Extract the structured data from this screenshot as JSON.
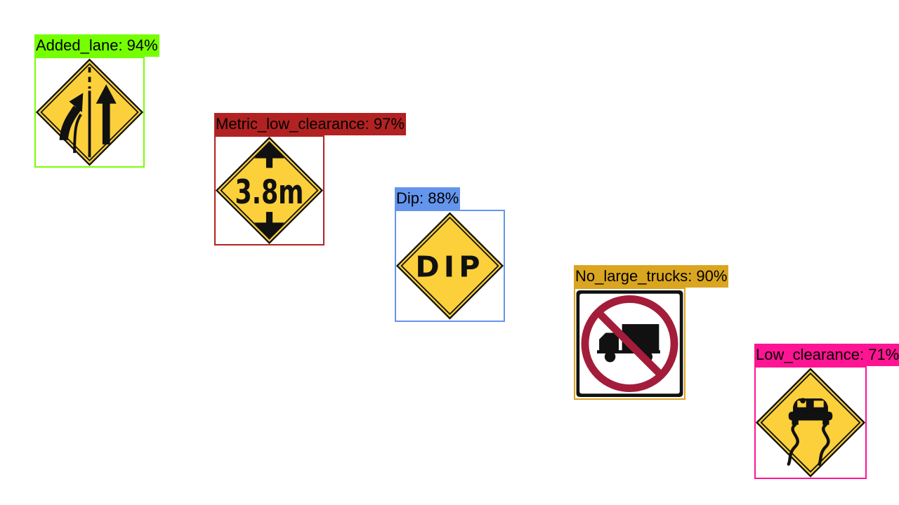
{
  "detections": [
    {
      "label": "Added_lane: 94%",
      "sign": "added-lane-sign",
      "color": "#76ff03"
    },
    {
      "label": "Metric_low_clearance: 97%",
      "sign": "metric-low-clearance-sign",
      "color": "#b22222",
      "sign_text": "3.8m"
    },
    {
      "label": "Dip: 88%",
      "sign": "dip-sign",
      "color": "#6495ed",
      "sign_text": "DIP"
    },
    {
      "label": "No_large_trucks: 90%",
      "sign": "no-large-trucks-sign",
      "color": "#daa520"
    },
    {
      "label": "Low_clearance: 71%",
      "sign": "slippery-road-sign",
      "color": "#ff1493"
    }
  ],
  "colors": {
    "sign_yellow": "#fcd03a",
    "sign_black": "#111111",
    "prohibition_red": "#a31d3a"
  }
}
